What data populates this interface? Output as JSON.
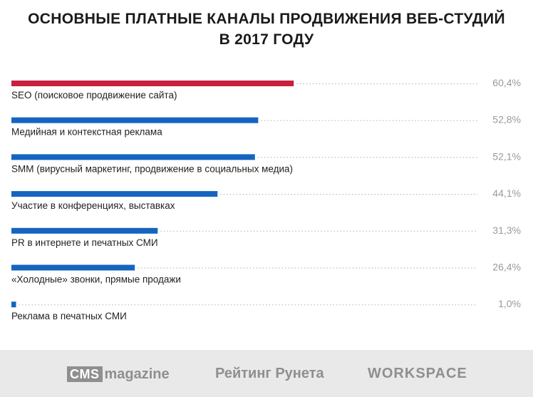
{
  "title_line1": "ОСНОВНЫЕ ПЛАТНЫЕ КАНАЛЫ ПРОДВИЖЕНИЯ ВЕБ-СТУДИЙ",
  "title_line2": "В 2017 ГОДУ",
  "chart_data": {
    "type": "bar",
    "orientation": "horizontal",
    "categories": [
      "SEO (поисковое продвижение сайта)",
      "Медийная и контекстная реклама",
      "SMM (вирусный маркетинг, продвижение в социальных медиа)",
      "Участие в конференциях, выставках",
      "PR в интернете и печатных СМИ",
      "«Холодные» звонки, прямые продажи",
      "Реклама в печатных СМИ"
    ],
    "values": [
      60.4,
      52.8,
      52.1,
      44.1,
      31.3,
      26.4,
      1.0
    ],
    "value_labels": [
      "60,4%",
      "52,8%",
      "52,1%",
      "44,1%",
      "31,3%",
      "26,4%",
      "1,0%"
    ],
    "highlight_index": 0,
    "colors": {
      "highlight": "#c8203e",
      "default": "#1565c0",
      "leader": "#b9b9b9",
      "label": "#222222",
      "value": "#9a9a9a"
    },
    "grid": false,
    "legend": "none"
  },
  "footer": {
    "logo1_box": "CMS",
    "logo1_word": "magazine",
    "logo2": "Рейтинг Рунета",
    "logo3": "WORKSPACE"
  }
}
